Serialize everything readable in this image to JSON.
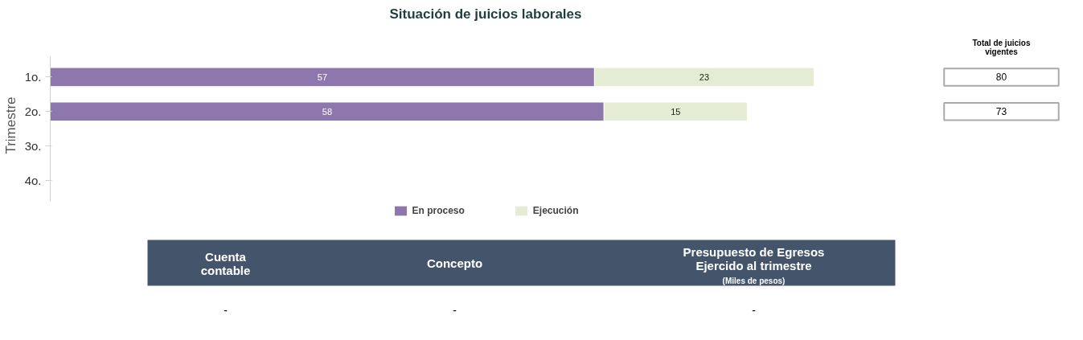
{
  "chart_data": [
    {
      "type": "bar",
      "orientation": "horizontal",
      "stacked": true,
      "title": "Situación de juicios laborales",
      "ylabel": "Trimestre",
      "categories": [
        "1o.",
        "2o.",
        "3o.",
        "4o."
      ],
      "series": [
        {
          "name": "En proceso",
          "color": "#8e77ad",
          "values": [
            57,
            58,
            null,
            null
          ]
        },
        {
          "name": "Ejecución",
          "color": "#e4ecd3",
          "values": [
            23,
            15,
            null,
            null
          ]
        }
      ],
      "data_labels": true,
      "legend": "bottom",
      "grid": false
    },
    {
      "type": "other",
      "title": "Total de juicios vigentes",
      "categories": [
        "80",
        "73",
        null,
        null
      ]
    },
    {
      "type": "other",
      "categories": [
        "Cuenta contable",
        "Concepto",
        "Presupuesto de Egresos Ejercido al trimestre"
      ],
      "annotations": [
        "(Miles de pesos)",
        "-",
        "-",
        "-"
      ]
    }
  ]
}
